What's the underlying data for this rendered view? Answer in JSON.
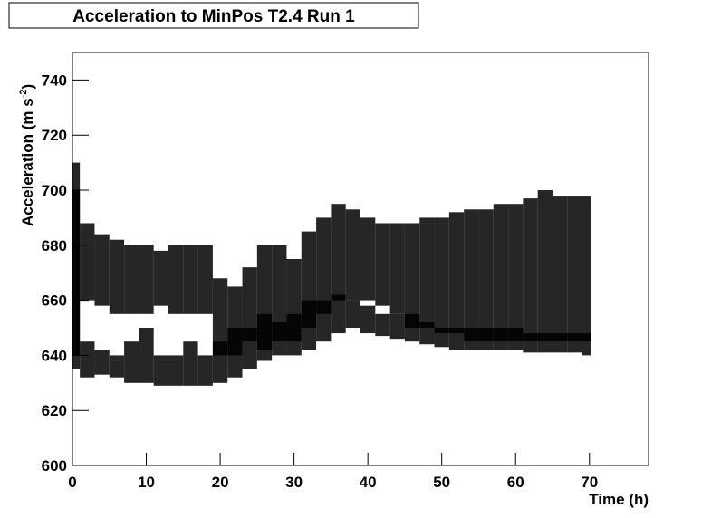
{
  "chart_data": {
    "type": "band-scatter",
    "title": "Acceleration to MinPos T2.4 Run 1",
    "x_label": "Time (h)",
    "y_label": [
      "Acceleration (m s",
      "-2",
      ")"
    ],
    "xlim": [
      0,
      78
    ],
    "ylim": [
      600,
      750
    ],
    "xticks": [
      0,
      10,
      20,
      30,
      40,
      50,
      60,
      70
    ],
    "yticks": [
      600,
      620,
      640,
      660,
      680,
      700,
      720,
      740
    ],
    "color": "#000000",
    "x": [
      0,
      2,
      4,
      6,
      8,
      10,
      12,
      14,
      16,
      18,
      20,
      22,
      24,
      26,
      28,
      30,
      32,
      34,
      36,
      38,
      40,
      42,
      44,
      46,
      48,
      50,
      52,
      54,
      56,
      58,
      60,
      62,
      64,
      66,
      68,
      70
    ],
    "bands": [
      {
        "low": [
          640,
          660,
          658,
          655,
          655,
          655,
          658,
          655,
          655,
          655,
          640,
          640,
          645,
          642,
          645,
          645,
          650,
          655,
          660,
          660,
          660,
          658,
          655,
          650,
          650,
          648,
          648,
          645,
          645,
          645,
          645,
          645,
          645,
          645,
          645,
          645
        ],
        "high": [
          710,
          688,
          684,
          682,
          680,
          680,
          678,
          680,
          680,
          680,
          668,
          665,
          672,
          680,
          680,
          675,
          685,
          690,
          695,
          693,
          690,
          688,
          688,
          688,
          690,
          690,
          692,
          693,
          693,
          695,
          695,
          697,
          700,
          698,
          698,
          698
        ]
      },
      {
        "low": [
          635,
          632,
          633,
          632,
          630,
          630,
          629,
          629,
          629,
          629,
          630,
          632,
          635,
          638,
          640,
          640,
          642,
          645,
          648,
          650,
          648,
          647,
          646,
          645,
          644,
          643,
          642,
          642,
          642,
          642,
          642,
          641,
          641,
          641,
          641,
          640
        ],
        "high": [
          700,
          645,
          642,
          640,
          645,
          650,
          640,
          640,
          645,
          640,
          645,
          650,
          650,
          655,
          652,
          655,
          660,
          660,
          662,
          660,
          658,
          655,
          655,
          655,
          652,
          650,
          650,
          650,
          650,
          650,
          650,
          648,
          648,
          648,
          648,
          648
        ]
      }
    ]
  }
}
